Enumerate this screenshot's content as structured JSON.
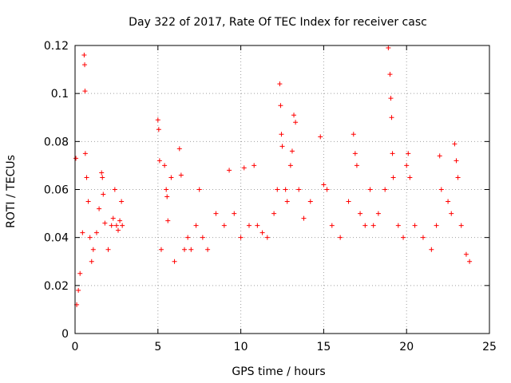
{
  "chart_data": {
    "type": "scatter",
    "title": "Day 322 of 2017, Rate Of TEC Index for receiver casc",
    "xlabel": "GPS time / hours",
    "ylabel": "ROTI / TECUs",
    "xlim": [
      0,
      25
    ],
    "ylim": [
      0,
      0.12
    ],
    "xticks": [
      0,
      5,
      10,
      15,
      20,
      25
    ],
    "yticks": [
      0,
      0.02,
      0.04,
      0.06,
      0.08,
      0.1,
      0.12
    ],
    "xtick_labels": [
      "0",
      "5",
      "10",
      "15",
      "20",
      "25"
    ],
    "ytick_labels": [
      "0",
      "0.02",
      "0.04",
      "0.06",
      "0.08",
      "0.1",
      "0.12"
    ],
    "grid": true,
    "marker": "plus",
    "color": "#ff0000",
    "series": [
      {
        "points": [
          [
            0.05,
            0.073
          ],
          [
            0.1,
            0.012
          ],
          [
            0.2,
            0.018
          ],
          [
            0.3,
            0.025
          ],
          [
            0.45,
            0.042
          ],
          [
            0.55,
            0.116
          ],
          [
            0.58,
            0.112
          ],
          [
            0.6,
            0.101
          ],
          [
            0.62,
            0.075
          ],
          [
            0.7,
            0.065
          ],
          [
            0.8,
            0.055
          ],
          [
            0.9,
            0.04
          ],
          [
            1.0,
            0.03
          ],
          [
            1.1,
            0.035
          ],
          [
            1.3,
            0.042
          ],
          [
            1.45,
            0.052
          ],
          [
            1.6,
            0.067
          ],
          [
            1.65,
            0.065
          ],
          [
            1.7,
            0.058
          ],
          [
            1.8,
            0.046
          ],
          [
            2.0,
            0.035
          ],
          [
            2.2,
            0.045
          ],
          [
            2.3,
            0.048
          ],
          [
            2.4,
            0.06
          ],
          [
            2.5,
            0.045
          ],
          [
            2.6,
            0.043
          ],
          [
            2.7,
            0.047
          ],
          [
            2.8,
            0.055
          ],
          [
            2.85,
            0.045
          ],
          [
            5.0,
            0.089
          ],
          [
            5.05,
            0.085
          ],
          [
            5.1,
            0.072
          ],
          [
            5.2,
            0.035
          ],
          [
            5.4,
            0.07
          ],
          [
            5.5,
            0.06
          ],
          [
            5.55,
            0.057
          ],
          [
            5.6,
            0.047
          ],
          [
            5.8,
            0.065
          ],
          [
            6.0,
            0.03
          ],
          [
            6.3,
            0.077
          ],
          [
            6.4,
            0.066
          ],
          [
            6.6,
            0.035
          ],
          [
            6.8,
            0.04
          ],
          [
            7.0,
            0.035
          ],
          [
            7.3,
            0.045
          ],
          [
            7.5,
            0.06
          ],
          [
            7.7,
            0.04
          ],
          [
            8.0,
            0.035
          ],
          [
            8.5,
            0.05
          ],
          [
            9.0,
            0.045
          ],
          [
            9.3,
            0.068
          ],
          [
            9.6,
            0.05
          ],
          [
            10.0,
            0.04
          ],
          [
            10.2,
            0.069
          ],
          [
            10.5,
            0.045
          ],
          [
            10.8,
            0.07
          ],
          [
            11.0,
            0.045
          ],
          [
            11.3,
            0.042
          ],
          [
            11.6,
            0.04
          ],
          [
            12.0,
            0.05
          ],
          [
            12.2,
            0.06
          ],
          [
            12.35,
            0.104
          ],
          [
            12.4,
            0.095
          ],
          [
            12.45,
            0.083
          ],
          [
            12.5,
            0.078
          ],
          [
            12.7,
            0.06
          ],
          [
            12.8,
            0.055
          ],
          [
            13.0,
            0.07
          ],
          [
            13.1,
            0.076
          ],
          [
            13.2,
            0.091
          ],
          [
            13.3,
            0.088
          ],
          [
            13.5,
            0.06
          ],
          [
            13.8,
            0.048
          ],
          [
            14.2,
            0.055
          ],
          [
            14.8,
            0.082
          ],
          [
            15.0,
            0.062
          ],
          [
            15.2,
            0.06
          ],
          [
            15.5,
            0.045
          ],
          [
            16.0,
            0.04
          ],
          [
            16.5,
            0.055
          ],
          [
            16.8,
            0.083
          ],
          [
            16.9,
            0.075
          ],
          [
            17.0,
            0.07
          ],
          [
            17.2,
            0.05
          ],
          [
            17.5,
            0.045
          ],
          [
            17.8,
            0.06
          ],
          [
            18.0,
            0.045
          ],
          [
            18.3,
            0.05
          ],
          [
            18.7,
            0.06
          ],
          [
            18.9,
            0.119
          ],
          [
            19.0,
            0.108
          ],
          [
            19.05,
            0.098
          ],
          [
            19.1,
            0.09
          ],
          [
            19.15,
            0.075
          ],
          [
            19.2,
            0.065
          ],
          [
            19.5,
            0.045
          ],
          [
            19.8,
            0.04
          ],
          [
            20.0,
            0.07
          ],
          [
            20.1,
            0.075
          ],
          [
            20.2,
            0.065
          ],
          [
            20.5,
            0.045
          ],
          [
            21.0,
            0.04
          ],
          [
            21.5,
            0.035
          ],
          [
            21.8,
            0.045
          ],
          [
            22.0,
            0.074
          ],
          [
            22.1,
            0.06
          ],
          [
            22.5,
            0.055
          ],
          [
            22.7,
            0.05
          ],
          [
            22.9,
            0.079
          ],
          [
            23.0,
            0.072
          ],
          [
            23.1,
            0.065
          ],
          [
            23.3,
            0.045
          ],
          [
            23.6,
            0.033
          ],
          [
            23.8,
            0.03
          ]
        ]
      }
    ]
  }
}
